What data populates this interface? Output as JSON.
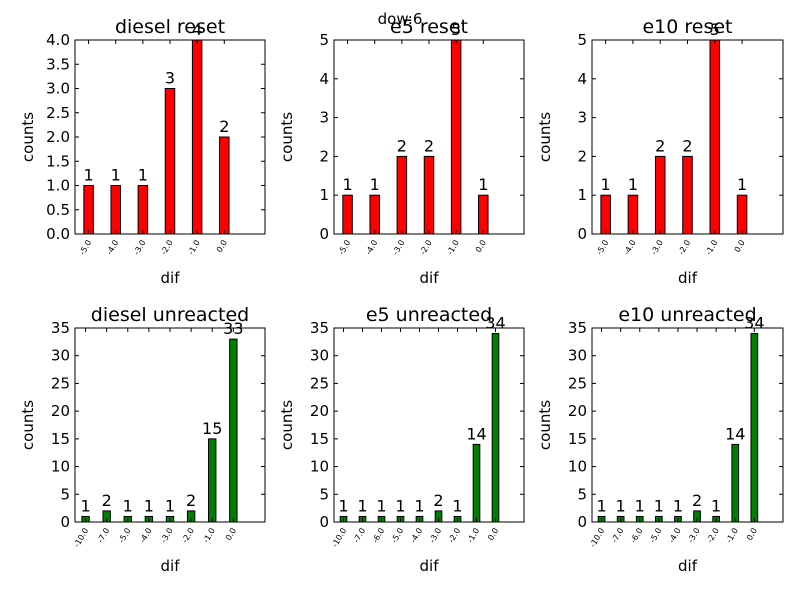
{
  "figure": {
    "suptitle": "dow:6"
  },
  "colors": {
    "reset": "#ff0000",
    "unreacted": "#008000",
    "bar_edge": "#000000",
    "axes": "#000000"
  },
  "chart_data": [
    {
      "type": "bar",
      "title": "diesel reset",
      "xlabel": "dif",
      "ylabel": "counts",
      "categories": [
        "-5.0",
        "-4.0",
        "-3.0",
        "-2.0",
        "-1.0",
        "0.0"
      ],
      "values": [
        1,
        1,
        1,
        3,
        4,
        2
      ],
      "ylim": [
        0,
        4.0
      ],
      "yticks": [
        "0.0",
        "0.5",
        "1.0",
        "1.5",
        "2.0",
        "2.5",
        "3.0",
        "3.5",
        "4.0"
      ],
      "color_key": "reset"
    },
    {
      "type": "bar",
      "title": "e5 reset",
      "xlabel": "dif",
      "ylabel": "counts",
      "categories": [
        "-5.0",
        "-4.0",
        "-3.0",
        "-2.0",
        "-1.0",
        "0.0"
      ],
      "values": [
        1,
        1,
        2,
        2,
        5,
        1
      ],
      "ylim": [
        0,
        5
      ],
      "yticks": [
        "0",
        "1",
        "2",
        "3",
        "4",
        "5"
      ],
      "color_key": "reset"
    },
    {
      "type": "bar",
      "title": "e10 reset",
      "xlabel": "dif",
      "ylabel": "counts",
      "categories": [
        "-5.0",
        "-4.0",
        "-3.0",
        "-2.0",
        "-1.0",
        "0.0"
      ],
      "values": [
        1,
        1,
        2,
        2,
        5,
        1
      ],
      "ylim": [
        0,
        5
      ],
      "yticks": [
        "0",
        "1",
        "2",
        "3",
        "4",
        "5"
      ],
      "color_key": "reset"
    },
    {
      "type": "bar",
      "title": "diesel unreacted",
      "xlabel": "dif",
      "ylabel": "counts",
      "categories": [
        "-10.0",
        "-7.0",
        "-5.0",
        "-4.0",
        "-3.0",
        "-2.0",
        "-1.0",
        "0.0"
      ],
      "values": [
        1,
        2,
        1,
        1,
        1,
        2,
        15,
        33
      ],
      "ylim": [
        0,
        35
      ],
      "yticks": [
        "0",
        "5",
        "10",
        "15",
        "20",
        "25",
        "30",
        "35"
      ],
      "color_key": "unreacted"
    },
    {
      "type": "bar",
      "title": "e5 unreacted",
      "xlabel": "dif",
      "ylabel": "counts",
      "categories": [
        "-10.0",
        "-7.0",
        "-6.0",
        "-5.0",
        "-4.0",
        "-3.0",
        "-2.0",
        "-1.0",
        "0.0"
      ],
      "values": [
        1,
        1,
        1,
        1,
        1,
        2,
        1,
        14,
        34
      ],
      "ylim": [
        0,
        35
      ],
      "yticks": [
        "0",
        "5",
        "10",
        "15",
        "20",
        "25",
        "30",
        "35"
      ],
      "color_key": "unreacted"
    },
    {
      "type": "bar",
      "title": "e10 unreacted",
      "xlabel": "dif",
      "ylabel": "counts",
      "categories": [
        "-10.0",
        "-7.0",
        "-6.0",
        "-5.0",
        "-4.0",
        "-3.0",
        "-2.0",
        "-1.0",
        "0.0"
      ],
      "values": [
        1,
        1,
        1,
        1,
        1,
        2,
        1,
        14,
        34
      ],
      "ylim": [
        0,
        35
      ],
      "yticks": [
        "0",
        "5",
        "10",
        "15",
        "20",
        "25",
        "30",
        "35"
      ],
      "color_key": "unreacted"
    }
  ]
}
